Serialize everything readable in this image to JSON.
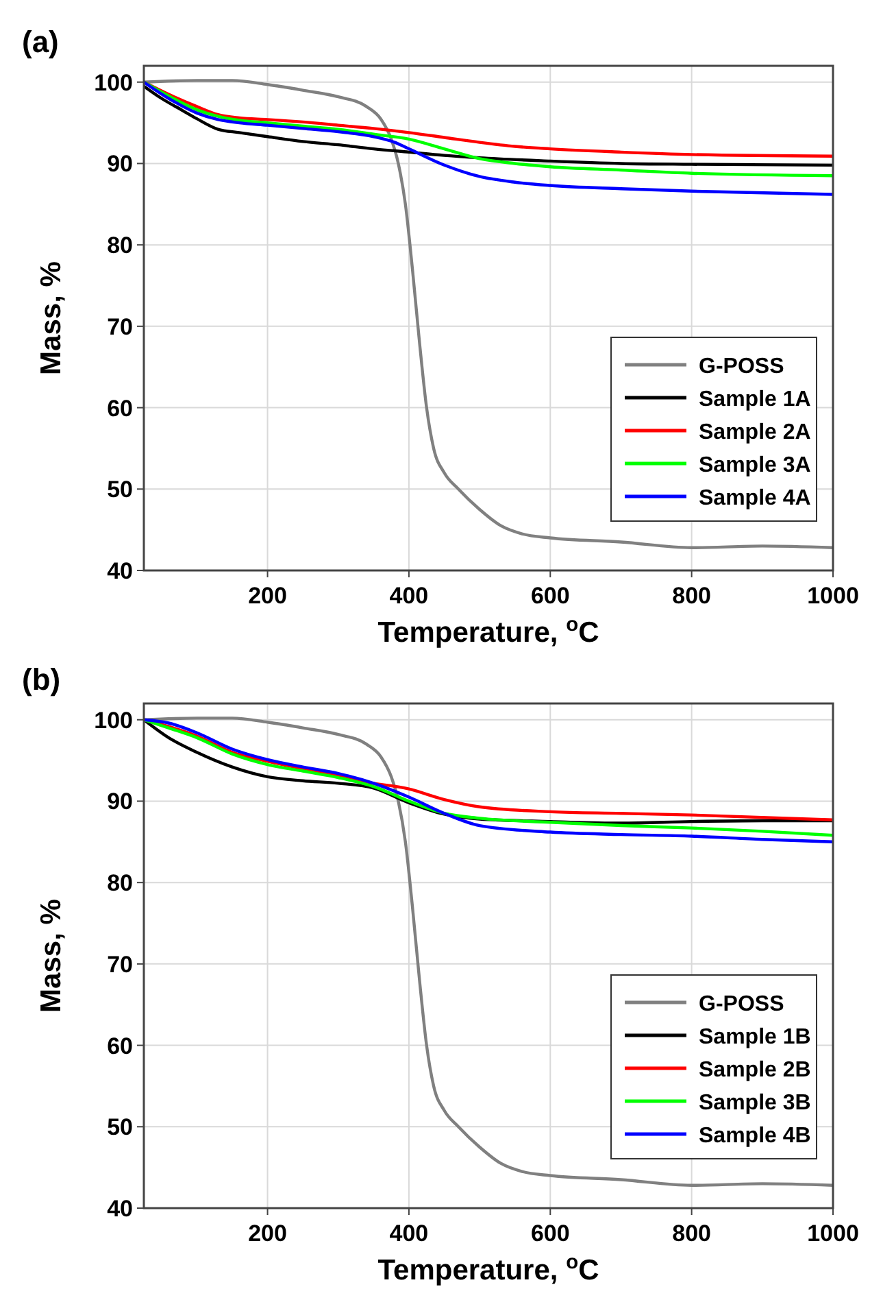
{
  "chart_data": [
    {
      "type": "line",
      "title": "(a)",
      "xlabel": "Temperature, $^{o}$C",
      "ylabel": "Mass, %",
      "xlim": [
        25,
        1000
      ],
      "ylim": [
        40,
        102
      ],
      "xticks": [
        200,
        400,
        600,
        800,
        1000
      ],
      "yticks": [
        40,
        50,
        60,
        70,
        80,
        90,
        100
      ],
      "grid": true,
      "legend": "bottom right",
      "line_style": "solid",
      "marker": "none",
      "series": [
        {
          "name": "G-POSS",
          "color": "#808080",
          "x": [
            25,
            100,
            150,
            200,
            250,
            300,
            340,
            360,
            375,
            385,
            395,
            405,
            415,
            425,
            435,
            450,
            470,
            500,
            530,
            560,
            600,
            700,
            800,
            900,
            1000
          ],
          "values": [
            100,
            100.2,
            100.2,
            99.7,
            99,
            98.2,
            97,
            95.5,
            93,
            90,
            85,
            77,
            68,
            60,
            55,
            52,
            50,
            47.5,
            45.5,
            44.5,
            44,
            43.5,
            42.8,
            43,
            42.8
          ]
        },
        {
          "name": "Sample 1A",
          "color": "#000000",
          "x": [
            25,
            50,
            80,
            100,
            130,
            160,
            200,
            250,
            300,
            350,
            400,
            450,
            500,
            600,
            700,
            800,
            1000
          ],
          "values": [
            99.5,
            98,
            96.5,
            95.5,
            94.2,
            93.8,
            93.3,
            92.7,
            92.3,
            91.8,
            91.4,
            91,
            90.7,
            90.3,
            90,
            89.9,
            89.8
          ]
        },
        {
          "name": "Sample 2A",
          "color": "#ff0000",
          "x": [
            25,
            60,
            100,
            130,
            160,
            200,
            250,
            300,
            350,
            400,
            450,
            500,
            550,
            600,
            700,
            800,
            1000
          ],
          "values": [
            100,
            98.5,
            97,
            96,
            95.6,
            95.4,
            95.1,
            94.7,
            94.3,
            93.8,
            93.2,
            92.6,
            92.1,
            91.8,
            91.4,
            91.1,
            90.9
          ]
        },
        {
          "name": "Sample 3A",
          "color": "#00ff00",
          "x": [
            25,
            60,
            100,
            130,
            160,
            200,
            250,
            300,
            350,
            400,
            450,
            500,
            550,
            600,
            700,
            800,
            1000
          ],
          "values": [
            100,
            98.3,
            96.6,
            95.8,
            95.3,
            95,
            94.6,
            94.2,
            93.6,
            93,
            91.8,
            90.6,
            90,
            89.6,
            89.2,
            88.8,
            88.5
          ]
        },
        {
          "name": "Sample 4A",
          "color": "#0000ff",
          "x": [
            25,
            60,
            100,
            130,
            160,
            200,
            250,
            300,
            350,
            380,
            400,
            450,
            500,
            550,
            600,
            700,
            800,
            1000
          ],
          "values": [
            100,
            98,
            96.2,
            95.4,
            95,
            94.7,
            94.3,
            93.9,
            93.3,
            92.6,
            91.8,
            89.8,
            88.4,
            87.7,
            87.3,
            86.9,
            86.6,
            86.2
          ]
        }
      ]
    },
    {
      "type": "line",
      "title": "(b)",
      "xlabel": "Temperature, $^{o}$C",
      "ylabel": "Mass, %",
      "xlim": [
        25,
        1000
      ],
      "ylim": [
        40,
        102
      ],
      "xticks": [
        200,
        400,
        600,
        800,
        1000
      ],
      "yticks": [
        40,
        50,
        60,
        70,
        80,
        90,
        100
      ],
      "grid": true,
      "legend": "bottom right",
      "line_style": "solid",
      "marker": "none",
      "series": [
        {
          "name": "G-POSS",
          "color": "#808080",
          "x": [
            25,
            100,
            150,
            200,
            250,
            300,
            340,
            360,
            375,
            385,
            395,
            405,
            415,
            425,
            435,
            450,
            470,
            500,
            530,
            560,
            600,
            700,
            800,
            900,
            1000
          ],
          "values": [
            100,
            100.2,
            100.2,
            99.7,
            99,
            98.2,
            97,
            95.5,
            93,
            90,
            85,
            77,
            68,
            60,
            55,
            52,
            50,
            47.5,
            45.5,
            44.5,
            44,
            43.5,
            42.8,
            43,
            42.8
          ]
        },
        {
          "name": "Sample 1B",
          "color": "#000000",
          "x": [
            25,
            60,
            100,
            150,
            200,
            250,
            300,
            350,
            400,
            450,
            500,
            600,
            700,
            800,
            900,
            1000
          ],
          "values": [
            100,
            97.8,
            96,
            94.2,
            93,
            92.5,
            92.2,
            91.6,
            89.8,
            88.4,
            87.8,
            87.5,
            87.3,
            87.5,
            87.6,
            87.6
          ]
        },
        {
          "name": "Sample 2B",
          "color": "#ff0000",
          "x": [
            25,
            100,
            150,
            200,
            250,
            300,
            330,
            400,
            450,
            500,
            600,
            700,
            800,
            1000
          ],
          "values": [
            100,
            98,
            96,
            94.9,
            94,
            93.2,
            92.5,
            91.5,
            90.2,
            89.3,
            88.7,
            88.5,
            88.3,
            87.7
          ]
        },
        {
          "name": "Sample 3B",
          "color": "#00ff00",
          "x": [
            25,
            60,
            100,
            150,
            200,
            250,
            300,
            350,
            400,
            450,
            500,
            600,
            700,
            800,
            900,
            1000
          ],
          "values": [
            100,
            99,
            97.8,
            95.8,
            94.5,
            93.7,
            92.9,
            91.8,
            90,
            88.5,
            87.9,
            87.4,
            87,
            86.7,
            86.3,
            85.8
          ]
        },
        {
          "name": "Sample 4B",
          "color": "#0000ff",
          "x": [
            25,
            60,
            100,
            150,
            200,
            250,
            300,
            350,
            400,
            450,
            500,
            600,
            700,
            800,
            900,
            1000
          ],
          "values": [
            100,
            99.6,
            98.4,
            96.4,
            95.1,
            94.2,
            93.4,
            92.2,
            90.5,
            88.5,
            87,
            86.2,
            85.9,
            85.7,
            85.3,
            85
          ]
        }
      ]
    }
  ]
}
